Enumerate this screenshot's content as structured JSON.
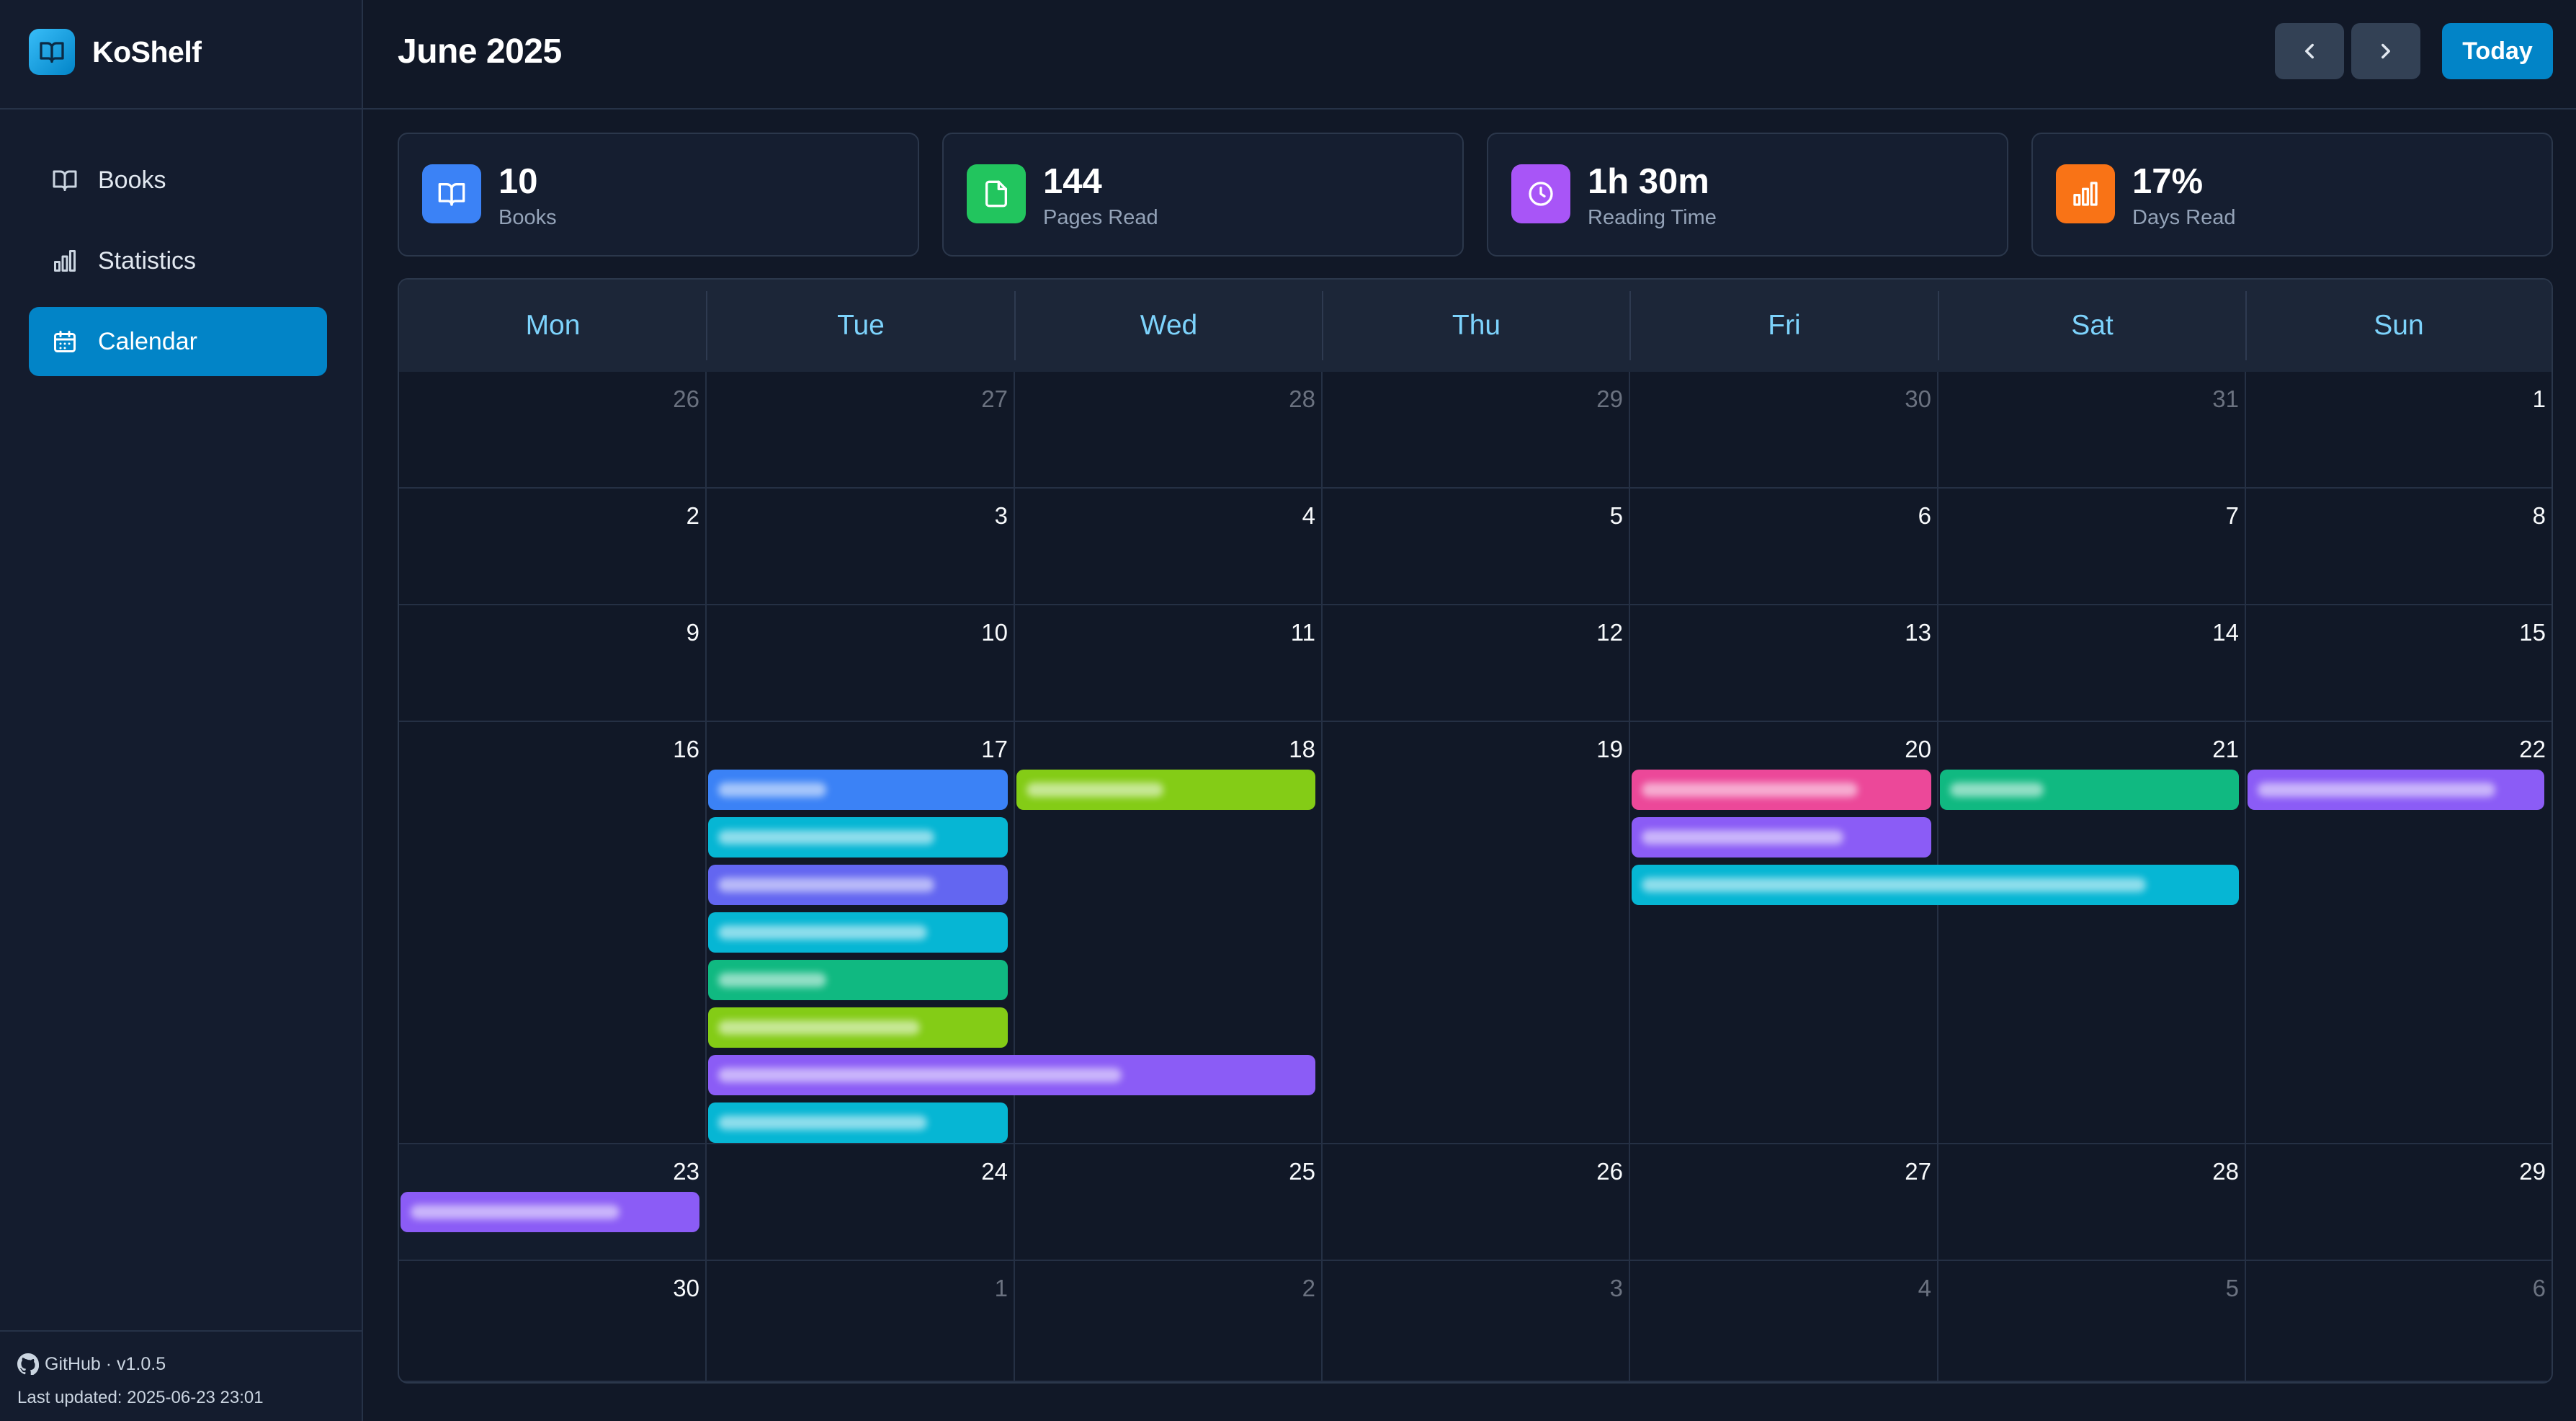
{
  "app": {
    "name": "KoShelf"
  },
  "sidebar": {
    "items": [
      {
        "label": "Books",
        "icon": "book-open-icon",
        "active": false
      },
      {
        "label": "Statistics",
        "icon": "bar-chart-icon",
        "active": false
      },
      {
        "label": "Calendar",
        "icon": "calendar-icon",
        "active": true
      }
    ],
    "footer": {
      "github": "GitHub · v1.0.5",
      "updated": "Last updated: 2025-06-23 23:01"
    }
  },
  "header": {
    "title": "June 2025",
    "prev_icon": "chevron-left-icon",
    "next_icon": "chevron-right-icon",
    "today_label": "Today"
  },
  "stats": [
    {
      "value": "10",
      "label": "Books",
      "icon": "book-open-icon",
      "color": "#3b82f6"
    },
    {
      "value": "144",
      "label": "Pages Read",
      "icon": "file-icon",
      "color": "#22c55e"
    },
    {
      "value": "1h 30m",
      "label": "Reading Time",
      "icon": "clock-icon",
      "color": "#a855f7"
    },
    {
      "value": "17%",
      "label": "Days Read",
      "icon": "bar-chart-icon",
      "color": "#f97316"
    }
  ],
  "calendar": {
    "weekdays": [
      "Mon",
      "Tue",
      "Wed",
      "Thu",
      "Fri",
      "Sat",
      "Sun"
    ],
    "today": {
      "week": 4,
      "day": 0
    },
    "weeks": [
      [
        {
          "d": "26",
          "m": true
        },
        {
          "d": "27",
          "m": true
        },
        {
          "d": "28",
          "m": true
        },
        {
          "d": "29",
          "m": true
        },
        {
          "d": "30",
          "m": true
        },
        {
          "d": "31",
          "m": true
        },
        {
          "d": "1",
          "m": false
        }
      ],
      [
        {
          "d": "2",
          "m": false
        },
        {
          "d": "3",
          "m": false
        },
        {
          "d": "4",
          "m": false
        },
        {
          "d": "5",
          "m": false
        },
        {
          "d": "6",
          "m": false
        },
        {
          "d": "7",
          "m": false
        },
        {
          "d": "8",
          "m": false
        }
      ],
      [
        {
          "d": "9",
          "m": false
        },
        {
          "d": "10",
          "m": false
        },
        {
          "d": "11",
          "m": false
        },
        {
          "d": "12",
          "m": false
        },
        {
          "d": "13",
          "m": false
        },
        {
          "d": "14",
          "m": false
        },
        {
          "d": "15",
          "m": false
        }
      ],
      [
        {
          "d": "16",
          "m": false
        },
        {
          "d": "17",
          "m": false
        },
        {
          "d": "18",
          "m": false
        },
        {
          "d": "19",
          "m": false
        },
        {
          "d": "20",
          "m": false
        },
        {
          "d": "21",
          "m": false
        },
        {
          "d": "22",
          "m": false
        }
      ],
      [
        {
          "d": "23",
          "m": false
        },
        {
          "d": "24",
          "m": false
        },
        {
          "d": "25",
          "m": false
        },
        {
          "d": "26",
          "m": false
        },
        {
          "d": "27",
          "m": false
        },
        {
          "d": "28",
          "m": false
        },
        {
          "d": "29",
          "m": false
        }
      ],
      [
        {
          "d": "30",
          "m": false
        },
        {
          "d": "1",
          "m": true
        },
        {
          "d": "2",
          "m": true
        },
        {
          "d": "3",
          "m": true
        },
        {
          "d": "4",
          "m": true
        },
        {
          "d": "5",
          "m": true
        },
        {
          "d": "6",
          "m": true
        }
      ]
    ],
    "events": [
      {
        "week": 3,
        "start": 1,
        "span": 1,
        "lane": 0,
        "color": "#3b82f6",
        "title": ""
      },
      {
        "week": 3,
        "start": 1,
        "span": 1,
        "lane": 1,
        "color": "#06b6d4",
        "title": ""
      },
      {
        "week": 3,
        "start": 1,
        "span": 1,
        "lane": 2,
        "color": "#6366f1",
        "title": ""
      },
      {
        "week": 3,
        "start": 1,
        "span": 1,
        "lane": 3,
        "color": "#06b6d4",
        "title": ""
      },
      {
        "week": 3,
        "start": 1,
        "span": 1,
        "lane": 4,
        "color": "#10b981",
        "title": ""
      },
      {
        "week": 3,
        "start": 1,
        "span": 1,
        "lane": 5,
        "color": "#84cc16",
        "title": ""
      },
      {
        "week": 3,
        "start": 1,
        "span": 2,
        "lane": 6,
        "color": "#8b5cf6",
        "title": ""
      },
      {
        "week": 3,
        "start": 1,
        "span": 1,
        "lane": 7,
        "color": "#06b6d4",
        "title": ""
      },
      {
        "week": 3,
        "start": 2,
        "span": 1,
        "lane": 0,
        "color": "#84cc16",
        "title": ""
      },
      {
        "week": 3,
        "start": 4,
        "span": 1,
        "lane": 0,
        "color": "#ec4899",
        "title": ""
      },
      {
        "week": 3,
        "start": 4,
        "span": 1,
        "lane": 1,
        "color": "#8b5cf6",
        "title": ""
      },
      {
        "week": 3,
        "start": 4,
        "span": 2,
        "lane": 2,
        "color": "#06b6d4",
        "title": ""
      },
      {
        "week": 3,
        "start": 5,
        "span": 1,
        "lane": 0,
        "color": "#10b981",
        "title": ""
      },
      {
        "week": 3,
        "start": 6,
        "span": 1,
        "lane": 0,
        "color": "#8b5cf6",
        "title": ""
      },
      {
        "week": 4,
        "start": 0,
        "span": 1,
        "lane": 0,
        "color": "#8b5cf6",
        "title": ""
      }
    ]
  }
}
